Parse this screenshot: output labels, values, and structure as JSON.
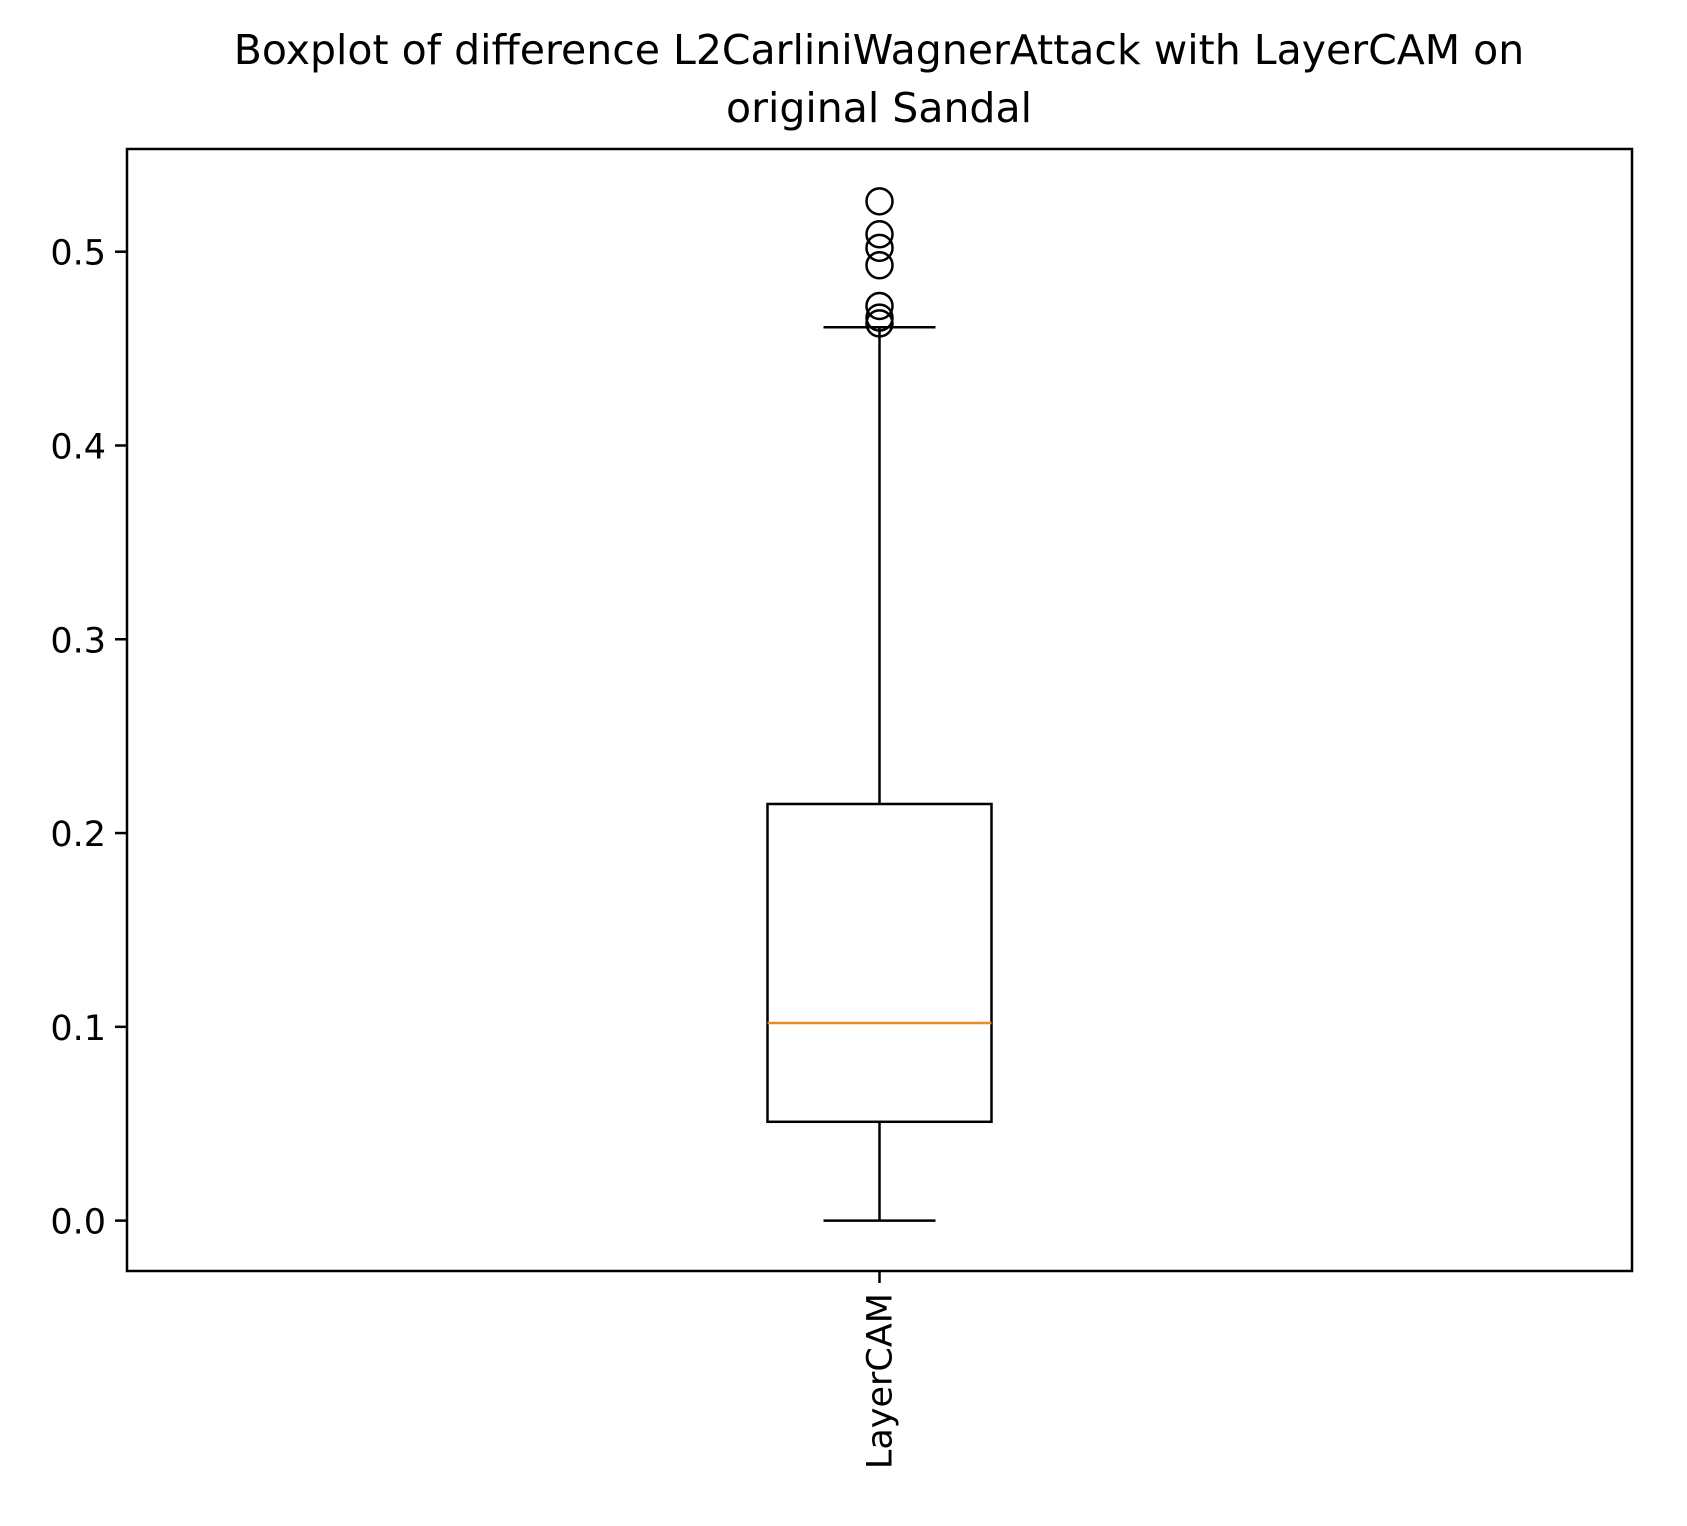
{
  "chart_data": {
    "type": "boxplot",
    "title": "Boxplot of difference L2CarliniWagnerAttack with LayerCAM on original Sandal",
    "title_lines": [
      "Boxplot of difference L2CarliniWagnerAttack with LayerCAM on",
      "original Sandal"
    ],
    "xlabel": "",
    "ylabel": "",
    "ylim": [
      -0.026,
      0.553
    ],
    "yticks": [
      0.0,
      0.1,
      0.2,
      0.3,
      0.4,
      0.5
    ],
    "ytick_labels": [
      "0.0",
      "0.1",
      "0.2",
      "0.3",
      "0.4",
      "0.5"
    ],
    "grid": false,
    "categories": [
      "LayerCAM"
    ],
    "boxes": [
      {
        "name": "LayerCAM",
        "whisker_low": 0.0,
        "q1": 0.051,
        "median": 0.102,
        "q3": 0.215,
        "whisker_high": 0.461,
        "outliers": [
          0.463,
          0.466,
          0.472,
          0.493,
          0.502,
          0.509,
          0.526
        ]
      }
    ],
    "colors": {
      "box": "#000000",
      "median": "#e8892b",
      "whisker": "#000000",
      "outlier": "#000000"
    }
  }
}
